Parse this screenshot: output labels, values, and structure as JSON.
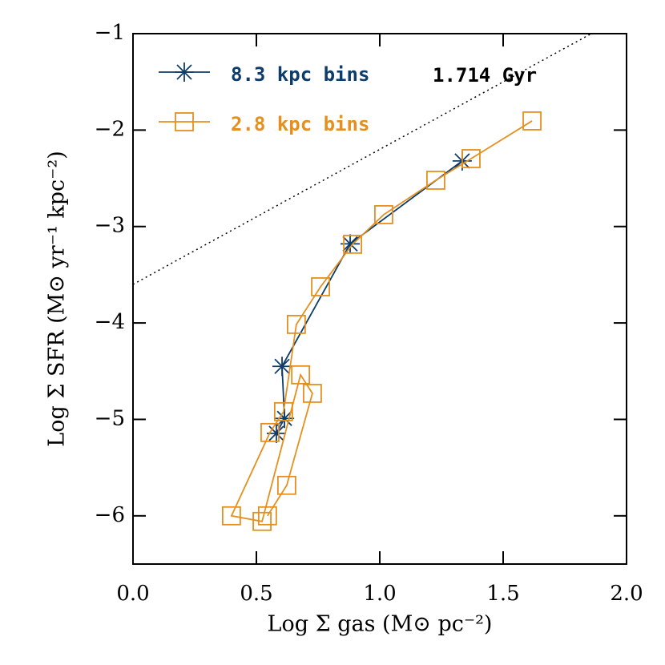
{
  "chart_data": {
    "type": "scatter",
    "x_label": "Log Σ gas (M⊙ pc⁻²)",
    "y_label": "Log Σ SFR (M⊙ yr⁻¹ kpc⁻²)",
    "annotation": "1.714 Gyr",
    "xlim": [
      0,
      2
    ],
    "ylim": [
      -6.5,
      -1
    ],
    "xticks": [
      {
        "value": 0,
        "label": "0.0"
      },
      0.5,
      {
        "value": 1,
        "label": "1.0"
      },
      1.5,
      {
        "value": 2,
        "label": "2.0"
      }
    ],
    "yticks": [
      -6,
      -5,
      -4,
      -3,
      -2,
      -1
    ],
    "legend": "top-left",
    "reference_line": {
      "x": [
        0,
        2
      ],
      "values": [
        -3.6,
        -0.8
      ]
    },
    "series": [
      {
        "name": "8.3 kpc bins",
        "color": "#0e3d6b",
        "marker": "star",
        "x": [
          0.581,
          0.614,
          0.604,
          0.88,
          1.334
        ],
        "values": [
          -5.145,
          -4.99,
          -4.45,
          -3.18,
          -2.32
        ]
      },
      {
        "name": "2.8 kpc bins",
        "color": "#e5901e",
        "marker": "square",
        "x": [
          1.617,
          1.37,
          1.227,
          1.016,
          0.89,
          0.76,
          0.662,
          0.61,
          0.555,
          0.399,
          0.523,
          0.679,
          0.727,
          0.623,
          0.545
        ],
        "values": [
          -1.905,
          -2.296,
          -2.52,
          -2.877,
          -3.184,
          -3.625,
          -4.015,
          -4.92,
          -5.136,
          -6.0,
          -6.058,
          -4.538,
          -4.73,
          -5.684,
          -6.0
        ]
      }
    ]
  }
}
